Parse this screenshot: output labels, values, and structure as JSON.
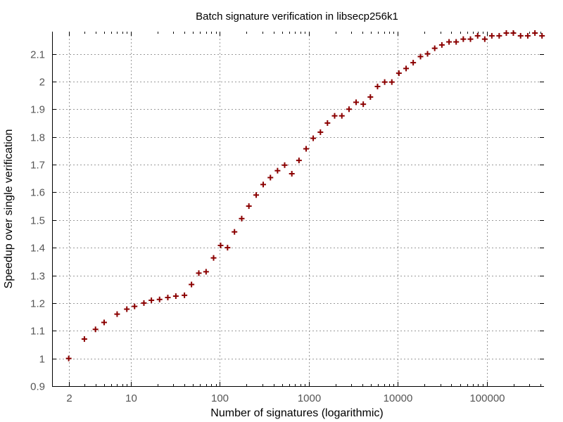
{
  "chart_data": {
    "type": "scatter",
    "title": "Batch signature verification in libsecp256k1",
    "xlabel": "Number of signatures (logarithmic)",
    "ylabel": "Speedup over single verification",
    "x_scale": "log",
    "xlim": [
      1.3,
      440000
    ],
    "ylim": [
      0.9,
      2.18
    ],
    "x_ticks": [
      2,
      10,
      100,
      1000,
      10000,
      100000
    ],
    "x_tick_labels": [
      "2",
      "10",
      "100",
      "1000",
      "10000",
      "100000"
    ],
    "y_ticks": [
      0.9,
      1,
      1.1,
      1.2,
      1.3,
      1.4,
      1.5,
      1.6,
      1.7,
      1.8,
      1.9,
      2,
      2.1
    ],
    "y_tick_labels": [
      "0.9",
      "1",
      "1.1",
      "1.2",
      "1.3",
      "1.4",
      "1.5",
      "1.6",
      "1.7",
      "1.8",
      "1.9",
      "2",
      "2.1"
    ],
    "grid": true,
    "marker": "plus",
    "color": "#8b0000",
    "series": [
      {
        "x": [
          2,
          3,
          4,
          5,
          7,
          9,
          11,
          14,
          17,
          21,
          26,
          32,
          40,
          48,
          58,
          70,
          85,
          102,
          122,
          146,
          176,
          212,
          256,
          307,
          370,
          445,
          535,
          644,
          775,
          932,
          1120,
          1350,
          1620,
          1950,
          2350,
          2830,
          3400,
          4090,
          4920,
          5920,
          7120,
          8570,
          10300,
          12400,
          14900,
          18000,
          21600,
          26000,
          31300,
          37700,
          45300,
          54500,
          65600,
          79000,
          95000,
          114000,
          138000,
          166000,
          199000,
          240000,
          289000,
          348000,
          418000
        ],
        "y": [
          1.0,
          1.07,
          1.105,
          1.13,
          1.16,
          1.178,
          1.188,
          1.2,
          1.21,
          1.213,
          1.22,
          1.225,
          1.228,
          1.267,
          1.308,
          1.313,
          1.363,
          1.408,
          1.4,
          1.457,
          1.505,
          1.55,
          1.59,
          1.628,
          1.653,
          1.678,
          1.698,
          1.667,
          1.715,
          1.757,
          1.795,
          1.817,
          1.85,
          1.876,
          1.876,
          1.9,
          1.925,
          1.918,
          1.944,
          1.982,
          1.998,
          1.998,
          2.03,
          2.047,
          2.068,
          2.09,
          2.1,
          2.12,
          2.132,
          2.143,
          2.143,
          2.153,
          2.153,
          2.165,
          2.153,
          2.165,
          2.165,
          2.175,
          2.175,
          2.165,
          2.165,
          2.175,
          2.165
        ]
      }
    ]
  }
}
